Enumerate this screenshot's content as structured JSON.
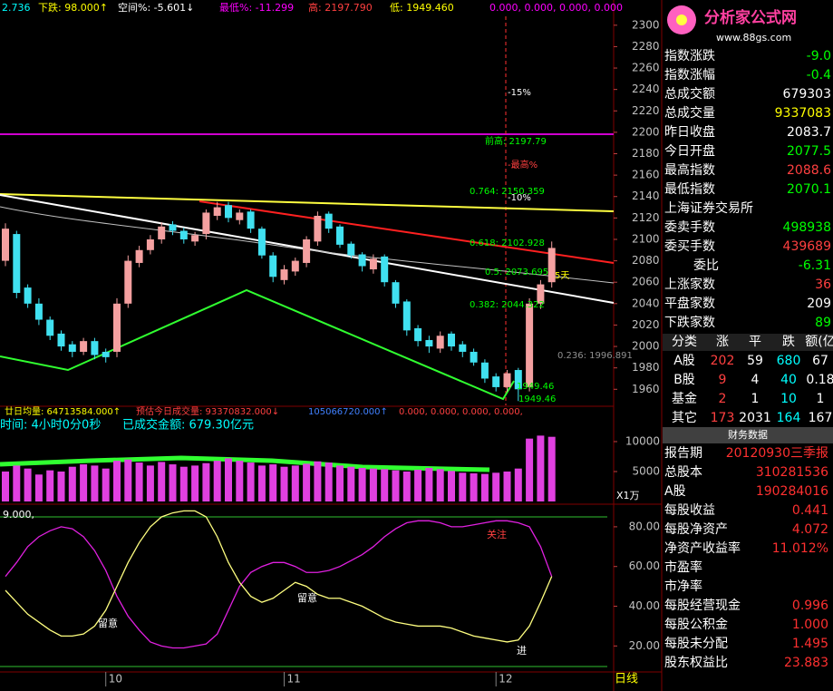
{
  "header": {
    "info": [
      {
        "text": "2.736",
        "color": "#00ffff"
      },
      {
        "text": "下跌: 98.000↑",
        "color": "#ffff00"
      },
      {
        "text": "空间%: -5.601↓",
        "color": "#ffffff"
      },
      {
        "text": "最低%: -11.299",
        "color": "#ff00ff"
      },
      {
        "text": "高: 2197.790",
        "color": "#ff4040"
      },
      {
        "text": "低: 1949.460",
        "color": "#ffff00"
      },
      {
        "text": "0.000, 0.000, 0.000, 0.000",
        "color": "#ff00ff"
      }
    ]
  },
  "chart_data": [
    {
      "type": "candlestick",
      "ylim": [
        1945,
        2310
      ],
      "yticks": [
        1960,
        1980,
        2000,
        2020,
        2040,
        2060,
        2080,
        2100,
        2120,
        2140,
        2160,
        2180,
        2200,
        2220,
        2240,
        2260,
        2280,
        2300
      ],
      "up_color": "#f4a0a0",
      "down_color": "#40e0f0",
      "open": [
        2080,
        2105,
        2055,
        2040,
        2025,
        2012,
        2002,
        1995,
        2005,
        1995,
        1995,
        2040,
        2078,
        2090,
        2100,
        2114,
        2108,
        2098,
        2105,
        2122,
        2132,
        2118,
        2126,
        2110,
        2085,
        2062,
        2070,
        2078,
        2098,
        2124,
        2112,
        2096,
        2086,
        2072,
        2084,
        2060,
        2042,
        2017,
        2006,
        1998,
        2012,
        2002,
        1995,
        1985,
        1972,
        1962,
        1978,
        1962,
        2040,
        2060
      ],
      "high": [
        2115,
        2108,
        2058,
        2045,
        2028,
        2015,
        2005,
        2008,
        2008,
        1998,
        2045,
        2085,
        2094,
        2104,
        2116,
        2117,
        2111,
        2107,
        2128,
        2135,
        2135,
        2128,
        2128,
        2112,
        2088,
        2076,
        2083,
        2103,
        2126,
        2126,
        2114,
        2098,
        2088,
        2086,
        2086,
        2062,
        2044,
        2020,
        2010,
        2014,
        2014,
        2005,
        1998,
        1988,
        1975,
        1978,
        1980,
        2045,
        2062,
        2098
      ],
      "low": [
        2075,
        2045,
        2036,
        2020,
        2006,
        1996,
        1990,
        1992,
        1988,
        1985,
        1990,
        2036,
        2074,
        2086,
        2096,
        2104,
        2096,
        2094,
        2100,
        2118,
        2116,
        2114,
        2106,
        2082,
        2060,
        2058,
        2066,
        2074,
        2094,
        2106,
        2092,
        2082,
        2070,
        2068,
        2056,
        2036,
        2010,
        2000,
        1994,
        1994,
        1996,
        1990,
        1982,
        1966,
        1958,
        1958,
        1949,
        1958,
        2035,
        2055
      ],
      "close": [
        2110,
        2050,
        2040,
        2025,
        2010,
        2000,
        1995,
        2005,
        1992,
        1990,
        2040,
        2080,
        2090,
        2100,
        2112,
        2108,
        2100,
        2104,
        2125,
        2130,
        2120,
        2125,
        2110,
        2085,
        2065,
        2072,
        2080,
        2100,
        2122,
        2110,
        2095,
        2085,
        2075,
        2082,
        2060,
        2040,
        2015,
        2005,
        2000,
        2010,
        2000,
        1995,
        1985,
        1970,
        1962,
        1975,
        1960,
        2040,
        2058,
        2092
      ],
      "annotations": [
        {
          "text": "-15%",
          "color": "#ffffff"
        },
        {
          "text": "前高: 2197.79",
          "color": "#00ff00"
        },
        {
          "text": "-最高%",
          "color": "#ff4040"
        },
        {
          "text": "0.764: 2150.359",
          "color": "#00ff00"
        },
        {
          "text": "-10%",
          "color": "#ffffff"
        },
        {
          "text": "0.618: 2102.928",
          "color": "#00ff00"
        },
        {
          "text": "0.5: 2073.695",
          "color": "#00ff00"
        },
        {
          "text": "5天",
          "color": "#ffff00"
        },
        {
          "text": "0.382: 2044.322",
          "color": "#00ff00"
        },
        {
          "text": "0.236: 1996.891",
          "color": "#909090"
        },
        {
          "text": "1949.46",
          "color": "#00ff00"
        },
        {
          "text": "1949.46",
          "color": "#00ff00"
        }
      ]
    },
    {
      "type": "bar",
      "ylim": [
        0,
        15600
      ],
      "yticks": [
        5000,
        10000
      ],
      "unit_label": "X1万",
      "color": "#e040e0",
      "legend_texts": [
        {
          "text": "廿日均量: 64713584.000↑",
          "color": "#ffff00"
        },
        {
          "text": "预估今日成交量: 93370832.000↓",
          "color": "#ff4040"
        },
        {
          "text": "105066720.000↑",
          "color": "#4080ff"
        },
        {
          "text": "0.000, 0.000, 0.000, 0.000,",
          "color": "#ff4040"
        }
      ],
      "info_texts": [
        {
          "text": "时间: 4小时0分0秒",
          "color": "#00ffff"
        },
        {
          "text": "已成交金额: 679.30亿元",
          "color": "#00ffff"
        }
      ],
      "values": [
        5000,
        6000,
        5500,
        4500,
        5200,
        5000,
        5800,
        6200,
        6000,
        5500,
        6800,
        7000,
        6500,
        6000,
        6600,
        6200,
        5800,
        6000,
        6400,
        6800,
        7200,
        6800,
        6500,
        6000,
        6200,
        5800,
        6000,
        6300,
        6700,
        6500,
        6000,
        5800,
        5600,
        5500,
        5400,
        5200,
        5000,
        5300,
        5600,
        5400,
        5100,
        4800,
        4700,
        4600,
        4800,
        5000,
        5500,
        10500,
        11000,
        10800
      ]
    },
    {
      "type": "line",
      "title": "9.000,",
      "ylim": [
        6,
        90
      ],
      "yticks": [
        {
          "value": 20,
          "label": "20.00"
        },
        {
          "value": 40,
          "label": "40.00"
        },
        {
          "value": 60,
          "label": "60.00"
        },
        {
          "value": 80,
          "label": "80.00"
        }
      ],
      "categories": [
        null,
        null,
        null,
        null,
        null,
        null,
        null,
        null,
        null,
        "10",
        null,
        null,
        null,
        null,
        null,
        null,
        null,
        null,
        null,
        null,
        null,
        null,
        null,
        null,
        null,
        "11",
        null,
        null,
        null,
        null,
        null,
        null,
        null,
        null,
        null,
        null,
        null,
        null,
        null,
        null,
        null,
        null,
        null,
        null,
        "12",
        null,
        null,
        null,
        null,
        null
      ],
      "series": [
        {
          "color": "#e020e0",
          "values": [
            55,
            62,
            70,
            75,
            78,
            80,
            79,
            75,
            68,
            58,
            45,
            35,
            28,
            22,
            20,
            19,
            19,
            20,
            21,
            26,
            38,
            50,
            57,
            60,
            62,
            62,
            60,
            57,
            57,
            58,
            60,
            63,
            66,
            70,
            75,
            79,
            82,
            83,
            83,
            82,
            80,
            80,
            81,
            82,
            83,
            83,
            82,
            80,
            70,
            55
          ]
        },
        {
          "color": "#ffff80",
          "values": [
            48,
            42,
            36,
            32,
            28,
            25,
            25,
            26,
            30,
            38,
            50,
            62,
            72,
            80,
            85,
            87,
            88,
            88,
            85,
            75,
            62,
            52,
            45,
            42,
            44,
            48,
            52,
            50,
            46,
            44,
            44,
            42,
            40,
            37,
            34,
            32,
            31,
            30,
            30,
            30,
            29,
            27,
            25,
            24,
            23,
            22,
            23,
            30,
            42,
            55
          ]
        }
      ],
      "annotations": [
        {
          "text": "留意",
          "color": "#ffffff"
        },
        {
          "text": "留意",
          "color": "#ffffff"
        },
        {
          "text": "关注",
          "color": "#ff4040"
        },
        {
          "text": "进",
          "color": "#ffffff"
        }
      ]
    }
  ],
  "side_panel": {
    "logo": "分析家公式网",
    "url": "www.88gs.com",
    "exchange": "上海证券交易所",
    "rows": [
      {
        "label": "指数涨跌",
        "value": "-9.0",
        "color": "#00ff00"
      },
      {
        "label": "指数涨幅",
        "value": "-0.4",
        "color": "#00ff00"
      },
      {
        "label": "总成交额",
        "value": "679303",
        "color": "#ffffff"
      },
      {
        "label": "总成交量",
        "value": "9337083",
        "color": "#ffff00"
      },
      {
        "label": "昨日收盘",
        "value": "2083.7",
        "color": "#ffffff"
      },
      {
        "label": "今日开盘",
        "value": "2077.5",
        "color": "#00ff00"
      },
      {
        "label": "最高指数",
        "value": "2088.6",
        "color": "#ff4040"
      },
      {
        "label": "最低指数",
        "value": "2070.1",
        "color": "#00ff00"
      }
    ],
    "rows2": [
      {
        "label": "委卖手数",
        "value": "498938",
        "color": "#00ff00"
      },
      {
        "label": "委买手数",
        "value": "439689",
        "color": "#ff4040"
      },
      {
        "label": "委比",
        "value": "-6.31",
        "color": "#00ff00"
      },
      {
        "label": "上涨家数",
        "value": "36",
        "color": "#ff4040"
      },
      {
        "label": "平盘家数",
        "value": "209",
        "color": "#ffffff"
      },
      {
        "label": "下跌家数",
        "value": "89",
        "color": "#00ff00"
      }
    ],
    "table": {
      "header": [
        "分类",
        "涨",
        "平",
        "跌",
        "额(亿"
      ],
      "rows": [
        [
          "A股",
          "202",
          "59",
          "680",
          "67"
        ],
        [
          "B股",
          "9",
          "4",
          "40",
          "0.18"
        ],
        [
          "基金",
          "2",
          "1",
          "10",
          "1"
        ],
        [
          "其它",
          "173",
          "2031",
          "164",
          "167"
        ]
      ]
    }
  },
  "finance": {
    "title": "财务数据",
    "rows": [
      {
        "label": "报告期",
        "value": "20120930三季报"
      },
      {
        "label": "总股本",
        "value": "310281536"
      },
      {
        "label": "A股",
        "value": "190284016"
      },
      {
        "label": "每股收益",
        "value": "0.441"
      },
      {
        "label": "每股净资产",
        "value": "4.072"
      },
      {
        "label": "净资产收益率",
        "value": "11.012%"
      },
      {
        "label": "市盈率"
      },
      {
        "label": "市净率"
      },
      {
        "label": "每股经营现金",
        "value": "0.996"
      },
      {
        "label": "每股公积金",
        "value": "1.000"
      },
      {
        "label": "每股未分配",
        "value": "1.495"
      },
      {
        "label": "股东权益比",
        "value": "23.883"
      }
    ]
  },
  "footer": {
    "period": "日线"
  }
}
